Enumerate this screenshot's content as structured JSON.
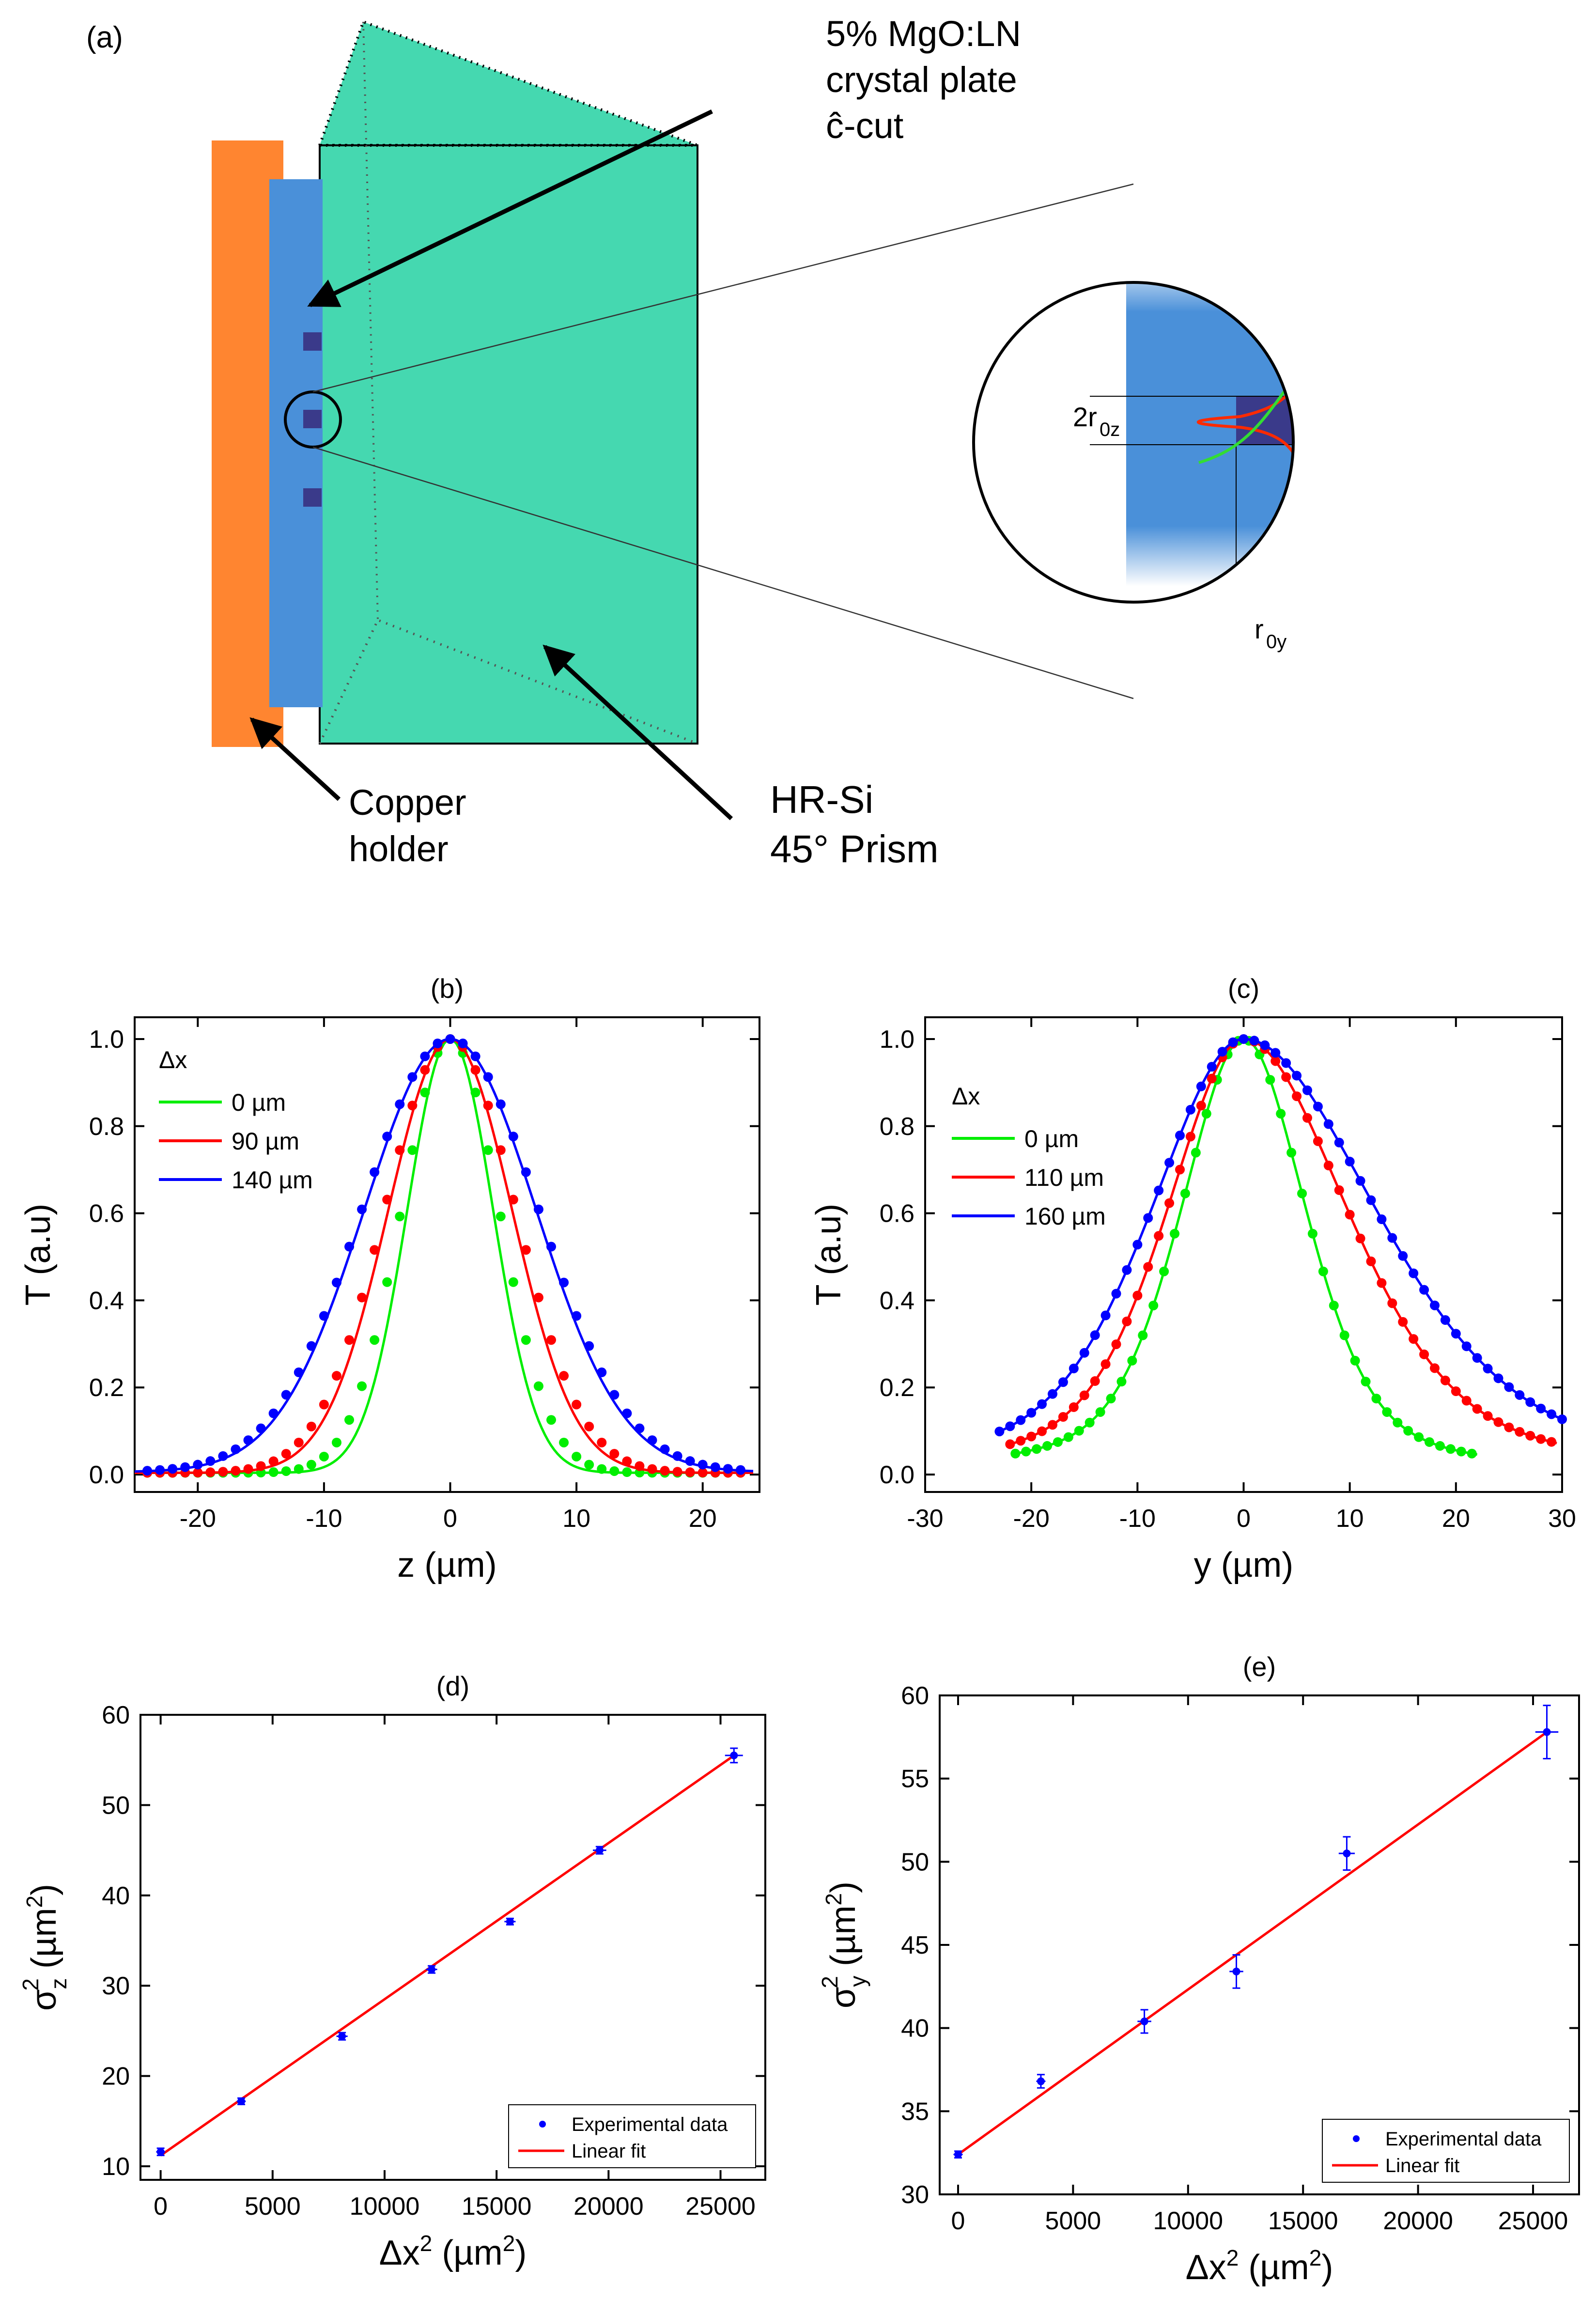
{
  "panel_a": {
    "label": "(a)",
    "crystal_label": [
      "5% MgO:LN",
      "crystal plate",
      "ĉ-cut"
    ],
    "holder_label": [
      "Copper",
      "holder"
    ],
    "prism_label": [
      "HR-Si",
      "45° Prism"
    ],
    "inset_z_label": "2r",
    "inset_z_sub": "0z",
    "inset_y_label": "r",
    "inset_y_sub": "0y",
    "colors": {
      "copper": "#ff8530",
      "crystal": "#4a90d9",
      "prism": "#45d8b0",
      "dots": "#3a3a8a"
    }
  },
  "chart_data": [
    {
      "id": "b",
      "type": "line",
      "title": "(b)",
      "xlabel": "z (µm)",
      "ylabel": "T (a.u)",
      "xlim": [
        -25,
        24.5
      ],
      "ylim": [
        -0.04,
        1.05
      ],
      "xticks": [
        -20,
        -10,
        0,
        10,
        20
      ],
      "yticks": [
        0.0,
        0.2,
        0.4,
        0.6,
        0.8,
        1.0
      ],
      "legend_title": "Δx",
      "legend_position": "top-left",
      "series": [
        {
          "name": "0 µm",
          "color": "#00ee00",
          "center": 0,
          "sigma": 3.4,
          "data_sigma": 3.9,
          "base": 0.004,
          "x_range": [
            -25,
            24
          ]
        },
        {
          "name": "90 µm",
          "color": "#ff0000",
          "center": 0,
          "sigma": 4.9,
          "data_sigma": 5.2,
          "base": 0.004,
          "x_range": [
            -25,
            24
          ]
        },
        {
          "name": "140 µm",
          "color": "#0000ff",
          "center": 0,
          "sigma": 6.8,
          "data_sigma": 7.0,
          "base": 0.006,
          "x_range": [
            -25,
            24
          ]
        }
      ]
    },
    {
      "id": "c",
      "type": "line",
      "title": "(c)",
      "xlabel": "y (µm)",
      "ylabel": "T (a.u)",
      "xlim": [
        -30,
        30
      ],
      "ylim": [
        -0.04,
        1.05
      ],
      "xticks": [
        -30,
        -20,
        -10,
        0,
        10,
        20,
        30
      ],
      "yticks": [
        0.0,
        0.2,
        0.4,
        0.6,
        0.8,
        1.0
      ],
      "legend_title": "Δx",
      "legend_position": "top-left",
      "series": [
        {
          "name": "0 µm",
          "color": "#00ee00",
          "center": 0,
          "sigma_left": 5.9,
          "sigma_right": 5.9,
          "base": 0.0,
          "x_range": [
            -21.5,
            22
          ],
          "data_step": 1.0
        },
        {
          "name": "110 µm",
          "color": "#ff0000",
          "center": 0,
          "sigma_left": 7.2,
          "sigma_right": 9.8,
          "base": 0.0,
          "x_range": [
            -22,
            29.5
          ],
          "data_step": 1.0
        },
        {
          "name": "160 µm",
          "color": "#0000ff",
          "center": 0,
          "sigma_left": 8.7,
          "sigma_right": 12.5,
          "base": 0.0,
          "x_range": [
            -23,
            30
          ],
          "data_step": 1.0
        }
      ]
    },
    {
      "id": "d",
      "type": "scatter",
      "title": "(d)",
      "xlabel": "Δx",
      "xlabel_sup": "2",
      "xlabel_unit": "(µm",
      "xlabel_unit_sup": "2",
      "xlabel_close": ")",
      "ylabel": "σ",
      "ylabel_sub": "z",
      "ylabel_sup": "2",
      "ylabel_unit": "(µm",
      "ylabel_unit_sup": "2",
      "ylabel_close": ")",
      "xlim": [
        -900,
        27000
      ],
      "ylim": [
        8.5,
        60
      ],
      "xticks": [
        0,
        5000,
        10000,
        15000,
        20000,
        25000
      ],
      "yticks": [
        10,
        20,
        30,
        40,
        50,
        60
      ],
      "legend": [
        "Experimental data",
        "Linear fit"
      ],
      "legend_position": "bottom-right",
      "points": [
        {
          "x": 0,
          "y": 11.6,
          "xerr": 200,
          "yerr": 0.4
        },
        {
          "x": 3600,
          "y": 17.2,
          "xerr": 200,
          "yerr": 0.35
        },
        {
          "x": 8100,
          "y": 24.4,
          "xerr": 250,
          "yerr": 0.4
        },
        {
          "x": 12100,
          "y": 31.8,
          "xerr": 250,
          "yerr": 0.4
        },
        {
          "x": 15600,
          "y": 37.1,
          "xerr": 250,
          "yerr": 0.35
        },
        {
          "x": 19600,
          "y": 45.0,
          "xerr": 300,
          "yerr": 0.4
        },
        {
          "x": 25600,
          "y": 55.5,
          "xerr": 400,
          "yerr": 0.8
        }
      ],
      "fit": {
        "intercept": 11.2,
        "slope": 0.00173,
        "x_range": [
          0,
          25600
        ]
      }
    },
    {
      "id": "e",
      "type": "scatter",
      "title": "(e)",
      "xlabel": "Δx",
      "xlabel_sup": "2",
      "xlabel_unit": "(µm",
      "xlabel_unit_sup": "2",
      "xlabel_close": ")",
      "ylabel": "σ",
      "ylabel_sub": "y",
      "ylabel_sup": "2",
      "ylabel_unit": "(µm",
      "ylabel_unit_sup": "2",
      "ylabel_close": ")",
      "xlim": [
        -800,
        27000
      ],
      "ylim": [
        30,
        60
      ],
      "xticks": [
        0,
        5000,
        10000,
        15000,
        20000,
        25000
      ],
      "yticks": [
        30,
        35,
        40,
        45,
        50,
        55,
        60
      ],
      "legend": [
        "Experimental data",
        "Linear fit"
      ],
      "legend_position": "bottom-right",
      "points": [
        {
          "x": 0,
          "y": 32.4,
          "xerr": 200,
          "yerr": 0.2
        },
        {
          "x": 3600,
          "y": 36.8,
          "xerr": 200,
          "yerr": 0.4
        },
        {
          "x": 8100,
          "y": 40.4,
          "xerr": 300,
          "yerr": 0.7
        },
        {
          "x": 12100,
          "y": 43.4,
          "xerr": 300,
          "yerr": 1.0
        },
        {
          "x": 16900,
          "y": 50.5,
          "xerr": 350,
          "yerr": 1.0
        },
        {
          "x": 25600,
          "y": 57.8,
          "xerr": 500,
          "yerr": 1.6
        }
      ],
      "fit": {
        "intercept": 32.4,
        "slope": 0.000992,
        "x_range": [
          0,
          25600
        ]
      }
    }
  ]
}
